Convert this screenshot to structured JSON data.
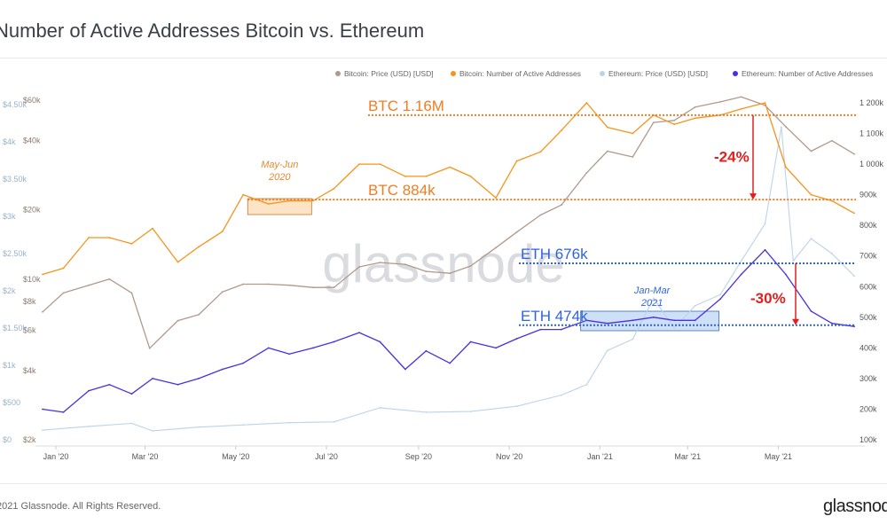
{
  "header": {
    "title": "Number of Active Addresses Bitcoin vs. Ethereum"
  },
  "legend": [
    {
      "label": "Bitcoin: Price (USD) [USD]",
      "color": "#b09a8a"
    },
    {
      "label": "Bitcoin: Number of Active Addresses",
      "color": "#f7931a"
    },
    {
      "label": "Ethereum: Price (USD) [USD]",
      "color": "#bcd3ea"
    },
    {
      "label": "Ethereum: Number of Active Addresses",
      "color": "#4b2fe0"
    }
  ],
  "footer": {
    "copyright": "2021 Glassnode. All Rights Reserved.",
    "brand": "glassnode"
  },
  "watermark": "glassnode",
  "annotations": {
    "btc_high": "BTC 1.16M",
    "btc_low": "BTC 884k",
    "eth_high": "ETH 676k",
    "eth_low": "ETH 474k",
    "btc_drop": "-24%",
    "eth_drop": "-30%",
    "btc_box_label": [
      "May-Jun",
      "2020"
    ],
    "eth_box_label": [
      "Jan-Mar",
      "2021"
    ]
  },
  "chart_data": {
    "type": "line",
    "x_ticks": [
      "Jan '20",
      "Mar '20",
      "May '20",
      "Jul '20",
      "Sep '20",
      "Nov '20",
      "Jan '21",
      "Mar '21",
      "May '21"
    ],
    "right_axis": {
      "labels": [
        "1 200k",
        "1 100k",
        "1 000k",
        "900k",
        "800k",
        "700k",
        "600k",
        "500k",
        "400k",
        "300k",
        "200k",
        "100k"
      ],
      "range": [
        100000,
        1200000
      ]
    },
    "btc_price_axis": {
      "labels": [
        "$60k",
        "$40k",
        "$20k",
        "$10k",
        "$8k",
        "$6k",
        "$4k",
        "$2k"
      ],
      "scale": "log"
    },
    "eth_price_axis": {
      "labels": [
        "$4.50k",
        "$4k",
        "$3.50k",
        "$3k",
        "$2.50k",
        "$2k",
        "$1.50k",
        "$1k",
        "$500",
        "$0"
      ],
      "range": [
        0,
        4500
      ]
    },
    "series": [
      {
        "name": "Bitcoin: Number of Active Addresses",
        "color": "#f7931a",
        "values": [
          [
            "2020-01-01",
            640000
          ],
          [
            "2020-01-15",
            660000
          ],
          [
            "2020-02-01",
            760000
          ],
          [
            "2020-02-15",
            760000
          ],
          [
            "2020-03-01",
            740000
          ],
          [
            "2020-03-15",
            790000
          ],
          [
            "2020-04-01",
            680000
          ],
          [
            "2020-04-15",
            730000
          ],
          [
            "2020-05-01",
            780000
          ],
          [
            "2020-05-15",
            900000
          ],
          [
            "2020-06-01",
            870000
          ],
          [
            "2020-06-15",
            880000
          ],
          [
            "2020-07-01",
            880000
          ],
          [
            "2020-07-15",
            920000
          ],
          [
            "2020-08-01",
            1000000
          ],
          [
            "2020-08-15",
            1000000
          ],
          [
            "2020-09-01",
            960000
          ],
          [
            "2020-09-15",
            960000
          ],
          [
            "2020-10-01",
            990000
          ],
          [
            "2020-10-15",
            960000
          ],
          [
            "2020-11-01",
            890000
          ],
          [
            "2020-11-15",
            1010000
          ],
          [
            "2020-12-01",
            1040000
          ],
          [
            "2020-12-15",
            1110000
          ],
          [
            "2021-01-01",
            1200000
          ],
          [
            "2021-01-15",
            1120000
          ],
          [
            "2021-02-01",
            1100000
          ],
          [
            "2021-02-15",
            1160000
          ],
          [
            "2021-03-01",
            1130000
          ],
          [
            "2021-03-15",
            1150000
          ],
          [
            "2021-04-01",
            1160000
          ],
          [
            "2021-04-15",
            1180000
          ],
          [
            "2021-05-01",
            1200000
          ],
          [
            "2021-05-15",
            990000
          ],
          [
            "2021-06-01",
            900000
          ],
          [
            "2021-06-15",
            880000
          ],
          [
            "2021-06-30",
            840000
          ]
        ]
      },
      {
        "name": "Ethereum: Number of Active Addresses",
        "color": "#4b2fe0",
        "values": [
          [
            "2020-01-01",
            200000
          ],
          [
            "2020-01-15",
            190000
          ],
          [
            "2020-02-01",
            260000
          ],
          [
            "2020-02-15",
            280000
          ],
          [
            "2020-03-01",
            250000
          ],
          [
            "2020-03-15",
            300000
          ],
          [
            "2020-04-01",
            280000
          ],
          [
            "2020-04-15",
            300000
          ],
          [
            "2020-05-01",
            330000
          ],
          [
            "2020-05-15",
            350000
          ],
          [
            "2020-06-01",
            400000
          ],
          [
            "2020-06-15",
            380000
          ],
          [
            "2020-07-01",
            400000
          ],
          [
            "2020-07-15",
            420000
          ],
          [
            "2020-08-01",
            450000
          ],
          [
            "2020-08-15",
            420000
          ],
          [
            "2020-09-01",
            330000
          ],
          [
            "2020-09-15",
            390000
          ],
          [
            "2020-10-01",
            350000
          ],
          [
            "2020-10-15",
            420000
          ],
          [
            "2020-11-01",
            400000
          ],
          [
            "2020-11-15",
            430000
          ],
          [
            "2020-12-01",
            460000
          ],
          [
            "2020-12-15",
            460000
          ],
          [
            "2021-01-01",
            490000
          ],
          [
            "2021-01-15",
            480000
          ],
          [
            "2021-02-01",
            490000
          ],
          [
            "2021-02-15",
            500000
          ],
          [
            "2021-03-01",
            490000
          ],
          [
            "2021-03-15",
            490000
          ],
          [
            "2021-04-01",
            560000
          ],
          [
            "2021-04-15",
            640000
          ],
          [
            "2021-05-01",
            720000
          ],
          [
            "2021-05-15",
            640000
          ],
          [
            "2021-06-01",
            520000
          ],
          [
            "2021-06-15",
            480000
          ],
          [
            "2021-06-30",
            470000
          ]
        ]
      },
      {
        "name": "Bitcoin: Price (USD) [USD]",
        "color": "#b09a8a",
        "values": [
          [
            "2020-01-01",
            7200
          ],
          [
            "2020-01-15",
            8700
          ],
          [
            "2020-02-01",
            9400
          ],
          [
            "2020-02-15",
            10000
          ],
          [
            "2020-03-01",
            8700
          ],
          [
            "2020-03-13",
            5000
          ],
          [
            "2020-04-01",
            6600
          ],
          [
            "2020-04-15",
            7000
          ],
          [
            "2020-05-01",
            8800
          ],
          [
            "2020-05-15",
            9500
          ],
          [
            "2020-06-01",
            9500
          ],
          [
            "2020-06-15",
            9400
          ],
          [
            "2020-07-01",
            9200
          ],
          [
            "2020-07-15",
            9200
          ],
          [
            "2020-08-01",
            11300
          ],
          [
            "2020-08-15",
            11800
          ],
          [
            "2020-09-01",
            11600
          ],
          [
            "2020-09-15",
            10800
          ],
          [
            "2020-10-01",
            10600
          ],
          [
            "2020-10-15",
            11400
          ],
          [
            "2020-11-01",
            13700
          ],
          [
            "2020-11-15",
            16000
          ],
          [
            "2020-12-01",
            19000
          ],
          [
            "2020-12-15",
            21000
          ],
          [
            "2021-01-01",
            29000
          ],
          [
            "2021-01-15",
            36000
          ],
          [
            "2021-02-01",
            34000
          ],
          [
            "2021-02-15",
            48000
          ],
          [
            "2021-03-01",
            49000
          ],
          [
            "2021-03-15",
            56000
          ],
          [
            "2021-04-01",
            59000
          ],
          [
            "2021-04-15",
            62000
          ],
          [
            "2021-05-01",
            57000
          ],
          [
            "2021-05-15",
            46000
          ],
          [
            "2021-06-01",
            36000
          ],
          [
            "2021-06-15",
            40000
          ],
          [
            "2021-06-30",
            35000
          ]
        ]
      },
      {
        "name": "Ethereum: Price (USD) [USD]",
        "color": "#bcd3ea",
        "values": [
          [
            "2020-01-01",
            130
          ],
          [
            "2020-02-01",
            180
          ],
          [
            "2020-03-01",
            220
          ],
          [
            "2020-03-15",
            120
          ],
          [
            "2020-04-15",
            170
          ],
          [
            "2020-05-15",
            200
          ],
          [
            "2020-06-15",
            230
          ],
          [
            "2020-07-15",
            240
          ],
          [
            "2020-08-15",
            430
          ],
          [
            "2020-09-15",
            370
          ],
          [
            "2020-10-15",
            380
          ],
          [
            "2020-11-15",
            450
          ],
          [
            "2020-12-15",
            600
          ],
          [
            "2021-01-01",
            740
          ],
          [
            "2021-01-15",
            1200
          ],
          [
            "2021-02-01",
            1350
          ],
          [
            "2021-02-15",
            1900
          ],
          [
            "2021-03-01",
            1500
          ],
          [
            "2021-03-15",
            1800
          ],
          [
            "2021-04-01",
            1950
          ],
          [
            "2021-04-15",
            2400
          ],
          [
            "2021-05-01",
            2900
          ],
          [
            "2021-05-12",
            4200
          ],
          [
            "2021-05-20",
            2400
          ],
          [
            "2021-06-01",
            2700
          ],
          [
            "2021-06-15",
            2500
          ],
          [
            "2021-06-30",
            2200
          ]
        ]
      }
    ]
  }
}
